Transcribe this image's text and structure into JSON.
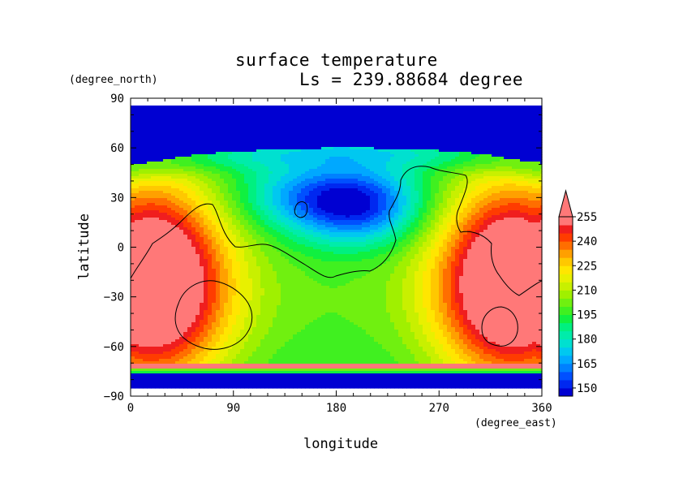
{
  "chart_data": {
    "type": "heatmap",
    "title": "surface temperature",
    "subtitle": "Ls = 239.88684 degree",
    "xlabel": "longitude",
    "ylabel": "latitude",
    "xunit": "(degree_east)",
    "yunit": "(degree_north)",
    "xlim": [
      0,
      360
    ],
    "ylim": [
      -90,
      90
    ],
    "x_ticks": [
      0,
      90,
      180,
      270,
      360
    ],
    "y_ticks": [
      90,
      60,
      30,
      0,
      -30,
      -60,
      -90
    ],
    "x_tick_labels": [
      "0",
      "90",
      "180",
      "270",
      "360"
    ],
    "y_tick_labels": [
      "90",
      "60",
      "30",
      "0",
      "−30",
      "−60",
      "−90"
    ],
    "colorbar": {
      "tick_labels": [
        "255",
        "240",
        "225",
        "210",
        "195",
        "180",
        "165",
        "150"
      ],
      "levels": [
        150,
        155,
        160,
        165,
        170,
        175,
        180,
        185,
        190,
        195,
        200,
        205,
        210,
        215,
        220,
        225,
        230,
        235,
        240,
        245,
        250,
        255
      ],
      "colors": [
        "#0000d2",
        "#0028f0",
        "#0050ff",
        "#0080ff",
        "#00a8ff",
        "#00c8f0",
        "#00e0d0",
        "#00ecaa",
        "#00f080",
        "#10f040",
        "#40f020",
        "#70f010",
        "#a0f000",
        "#c8f000",
        "#e8f000",
        "#ffe600",
        "#ffc800",
        "#ffa000",
        "#ff6e00",
        "#ff3c00",
        "#f01e1e",
        "#ff7878"
      ],
      "extend": "max"
    },
    "field_summary": [
      {
        "region": "north polar cap (lat > 60)",
        "value": "<150"
      },
      {
        "region": "south polar ice band (lat < -75)",
        "value": "<150"
      },
      {
        "region": "southern subtropics, lon 0-45 and 290-360",
        "value": ">255"
      },
      {
        "region": "central low latitudes, lon 90-240",
        "value": "195-210"
      },
      {
        "region": "northern mid latitudes, lon 150-250",
        "value": "150-165"
      }
    ]
  }
}
